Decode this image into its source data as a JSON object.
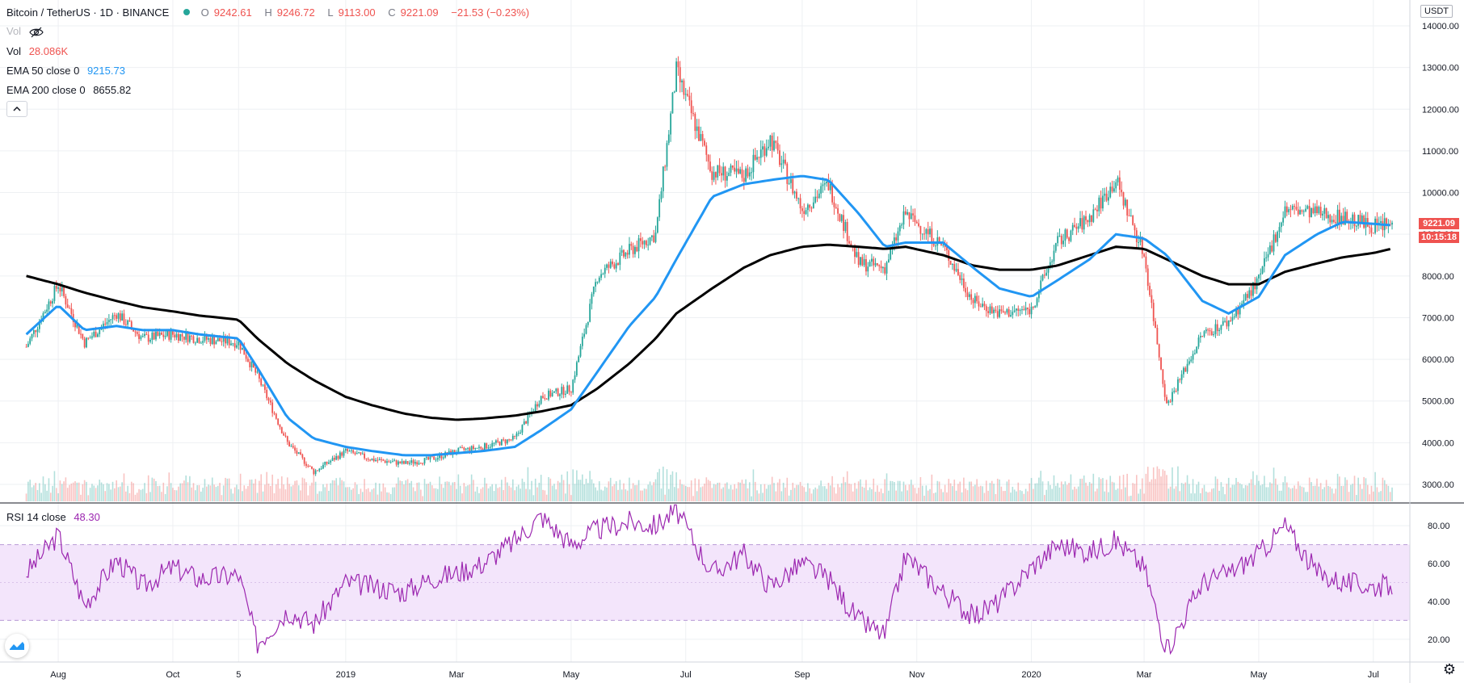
{
  "header": {
    "symbol": "Bitcoin / TetherUS · 1D · BINANCE",
    "open_label": "O",
    "open": "9242.61",
    "high_label": "H",
    "high": "9246.72",
    "low_label": "L",
    "low": "9113.00",
    "close_label": "C",
    "close": "9221.09",
    "change": "−21.53 (−0.23%)"
  },
  "legend": {
    "vol_hidden_label": "Vol",
    "vol_label": "Vol",
    "vol_value": "28.086K",
    "ema50_label": "EMA 50 close 0",
    "ema50_value": "9215.73",
    "ema200_label": "EMA 200 close 0",
    "ema200_value": "8655.82",
    "rsi_label": "RSI 14 close",
    "rsi_value": "48.30"
  },
  "price_scale": {
    "currency": "USDT",
    "last_price": "9221.09",
    "countdown": "10:15:18",
    "ticks": [
      "14000.00",
      "13000.00",
      "12000.00",
      "11000.00",
      "10000.00",
      "9000.00",
      "8000.00",
      "7000.00",
      "6000.00",
      "5000.00",
      "4000.00",
      "3000.00"
    ]
  },
  "rsi_scale": {
    "ticks": [
      "80.00",
      "60.00",
      "40.00",
      "20.00"
    ]
  },
  "time_axis": {
    "labels": [
      "Aug",
      "Oct",
      "5",
      "2019",
      "Mar",
      "May",
      "Jul",
      "Sep",
      "Nov",
      "2020",
      "Mar",
      "May",
      "Jul"
    ]
  },
  "colors": {
    "up": "#26a69a",
    "down": "#ef5350",
    "ema50": "#2196f3",
    "ema200": "#000000",
    "rsi": "#9c27b0",
    "rsi_band": "#f3e5fb",
    "grid": "#eef0f3"
  },
  "icons": {
    "visibility": "eye-off-icon",
    "collapse": "chevron-up-icon",
    "logo": "tradingview-logo-icon",
    "settings": "gear-icon"
  },
  "chart_data": [
    {
      "type": "line",
      "title": "Bitcoin / TetherUS · 1D · BINANCE",
      "ylim": [
        2600,
        14200
      ],
      "log_scale": false,
      "grid": true,
      "x_ticks": [
        "Aug",
        "Oct",
        "5",
        "2019",
        "Mar",
        "May",
        "Jul",
        "Sep",
        "Nov",
        "2020",
        "Mar",
        "May",
        "Jul"
      ],
      "series": [
        {
          "name": "Price (approx. close)",
          "x": [
            "2018-07-15",
            "2018-08-01",
            "2018-08-15",
            "2018-09-01",
            "2018-09-15",
            "2018-10-01",
            "2018-10-15",
            "2018-11-05",
            "2018-11-15",
            "2018-12-01",
            "2018-12-15",
            "2019-01-01",
            "2019-01-15",
            "2019-02-01",
            "2019-02-15",
            "2019-03-01",
            "2019-03-15",
            "2019-04-01",
            "2019-04-15",
            "2019-05-01",
            "2019-05-15",
            "2019-06-01",
            "2019-06-15",
            "2019-06-26",
            "2019-07-15",
            "2019-08-01",
            "2019-08-15",
            "2019-09-01",
            "2019-09-15",
            "2019-10-01",
            "2019-10-15",
            "2019-10-26",
            "2019-11-15",
            "2019-12-01",
            "2019-12-15",
            "2020-01-01",
            "2020-01-15",
            "2020-02-01",
            "2020-02-15",
            "2020-03-01",
            "2020-03-13",
            "2020-04-01",
            "2020-04-15",
            "2020-05-01",
            "2020-05-15",
            "2020-06-01",
            "2020-06-15",
            "2020-07-01",
            "2020-07-11"
          ],
          "values": [
            6300,
            7800,
            6400,
            7100,
            6500,
            6600,
            6500,
            6400,
            5600,
            4000,
            3300,
            3800,
            3600,
            3500,
            3600,
            3800,
            3900,
            4100,
            5100,
            5300,
            8000,
            8600,
            9000,
            12900,
            10500,
            10400,
            11300,
            9600,
            10200,
            8300,
            8200,
            9500,
            8700,
            7400,
            7100,
            7200,
            8800,
            9400,
            10300,
            8500,
            4900,
            6600,
            6900,
            7900,
            9600,
            9500,
            9400,
            9200,
            9221
          ]
        },
        {
          "name": "EMA 50",
          "values": [
            6600,
            7300,
            6700,
            6800,
            6700,
            6700,
            6600,
            6500,
            5800,
            4600,
            4100,
            3900,
            3800,
            3700,
            3700,
            3750,
            3800,
            3900,
            4300,
            4800,
            5700,
            6800,
            7500,
            8400,
            9900,
            10200,
            10300,
            10400,
            10300,
            9500,
            8700,
            8800,
            8800,
            8200,
            7700,
            7500,
            7900,
            8400,
            9000,
            8900,
            8500,
            7400,
            7100,
            7500,
            8500,
            9000,
            9300,
            9250,
            9215.73
          ]
        },
        {
          "name": "EMA 200",
          "values": [
            8000,
            7800,
            7600,
            7400,
            7250,
            7150,
            7050,
            6950,
            6500,
            5900,
            5500,
            5100,
            4900,
            4700,
            4600,
            4550,
            4580,
            4650,
            4750,
            4900,
            5300,
            5900,
            6500,
            7100,
            7700,
            8200,
            8500,
            8700,
            8750,
            8700,
            8650,
            8700,
            8500,
            8250,
            8150,
            8150,
            8250,
            8500,
            8700,
            8650,
            8400,
            8000,
            7800,
            7800,
            8100,
            8300,
            8450,
            8550,
            8655.82
          ]
        }
      ]
    },
    {
      "type": "line",
      "title": "RSI 14 close",
      "ylim": [
        8,
        92
      ],
      "band": [
        30,
        70
      ],
      "series": [
        {
          "name": "RSI 14 close",
          "values": [
            55,
            75,
            38,
            62,
            48,
            58,
            52,
            54,
            18,
            35,
            28,
            50,
            48,
            45,
            52,
            55,
            60,
            72,
            85,
            70,
            78,
            82,
            80,
            88,
            55,
            65,
            48,
            60,
            52,
            30,
            22,
            64,
            45,
            32,
            40,
            58,
            70,
            66,
            72,
            58,
            14,
            50,
            55,
            65,
            80,
            55,
            50,
            48,
            48.3
          ]
        }
      ]
    }
  ]
}
